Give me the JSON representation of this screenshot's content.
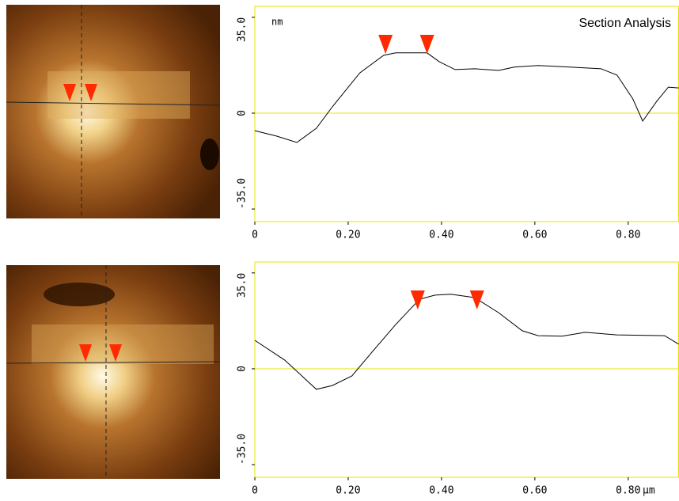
{
  "chart_data": [
    {
      "type": "line",
      "title": "Section Analysis",
      "y_unit": "nm",
      "x": [
        0,
        0.047,
        0.09,
        0.132,
        0.166,
        0.225,
        0.276,
        0.302,
        0.369,
        0.395,
        0.429,
        0.471,
        0.522,
        0.556,
        0.607,
        0.675,
        0.742,
        0.776,
        0.81,
        0.831,
        0.861,
        0.886,
        0.908
      ],
      "values": [
        -6.4,
        -8.4,
        -10.7,
        -5.5,
        2.3,
        14.7,
        21.1,
        22.0,
        22.0,
        18.8,
        15.9,
        16.2,
        15.6,
        16.8,
        17.4,
        16.8,
        16.2,
        13.9,
        5.2,
        -2.9,
        4.3,
        9.5,
        9.2
      ],
      "cursors": [
        0.28,
        0.369
      ],
      "xlim": [
        0,
        0.908
      ],
      "ylim": [
        -39.6,
        39.0
      ],
      "xticks": [
        0,
        {
          "value": 0.2,
          "label": "0.20"
        },
        {
          "value": 0.4,
          "label": "0.40"
        },
        {
          "value": 0.6,
          "label": "0.60"
        },
        {
          "value": 0.8,
          "label": "0.80"
        }
      ],
      "yticks": [
        {
          "value": -35,
          "label": "-35.0"
        },
        0,
        {
          "value": 35,
          "label": "35.0"
        }
      ],
      "color": "#000000",
      "frame_color": "#e6e600",
      "cursor_color": "#ff2a00"
    },
    {
      "type": "line",
      "x_unit": "µm",
      "x": [
        0,
        0.064,
        0.132,
        0.166,
        0.208,
        0.251,
        0.302,
        0.353,
        0.386,
        0.42,
        0.471,
        0.522,
        0.573,
        0.607,
        0.658,
        0.708,
        0.776,
        0.878,
        0.908
      ],
      "values": [
        10.4,
        3.2,
        -7.5,
        -6.1,
        -2.6,
        6.1,
        16.2,
        25.4,
        26.9,
        27.2,
        26.0,
        20.5,
        13.9,
        12.1,
        11.9,
        13.3,
        12.4,
        12.1,
        9.0
      ],
      "cursors": [
        0.349,
        0.476
      ],
      "xlim": [
        0,
        0.908
      ],
      "ylim": [
        -39.6,
        39.0
      ],
      "xticks": [
        0,
        {
          "value": 0.2,
          "label": "0.20"
        },
        {
          "value": 0.4,
          "label": "0.40"
        },
        {
          "value": 0.6,
          "label": "0.60"
        },
        {
          "value": 0.8,
          "label": "0.80"
        }
      ],
      "yticks": [
        {
          "value": -35,
          "label": "-35.0"
        },
        0,
        {
          "value": 35,
          "label": "35.0"
        }
      ],
      "color": "#000000",
      "frame_color": "#e6e600",
      "cursor_color": "#ff2a00"
    }
  ]
}
